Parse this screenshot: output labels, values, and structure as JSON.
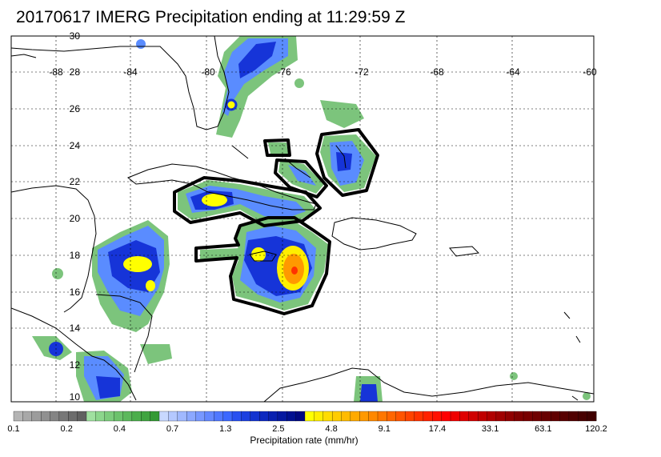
{
  "title": "20170617 IMERG Precipitation ending at 11:29:59 Z",
  "map": {
    "lon_labels": [
      "-88",
      "-84",
      "-80",
      "-76",
      "-72",
      "-68",
      "-64",
      "-60"
    ],
    "lat_labels": [
      "30",
      "28",
      "26",
      "24",
      "22",
      "20",
      "18",
      "16",
      "14",
      "12",
      "10"
    ]
  },
  "colorbar": {
    "title": "Precipitation rate (mm/hr)",
    "labels": [
      "0.1",
      "0.2",
      "0.4",
      "0.7",
      "1.3",
      "2.5",
      "4.8",
      "9.1",
      "17.4",
      "33.1",
      "63.1",
      "120.2"
    ],
    "colors": [
      "#b4b4b4",
      "#a8a8a8",
      "#9c9c9c",
      "#909090",
      "#848484",
      "#787878",
      "#6c6c6c",
      "#606060",
      "#a0e0a0",
      "#8cd68c",
      "#7ccc7c",
      "#6cc26c",
      "#5cb85c",
      "#4cae4c",
      "#40a440",
      "#349a34",
      "#c8d8ff",
      "#b4c8ff",
      "#a0b8ff",
      "#8ca8ff",
      "#7898ff",
      "#6488ff",
      "#5078ff",
      "#3c68ff",
      "#2850f0",
      "#1c40e0",
      "#1434d0",
      "#0c28c0",
      "#0820b0",
      "#0418a0",
      "#001090",
      "#000880",
      "#ffff00",
      "#ffee00",
      "#ffdc00",
      "#ffcc00",
      "#ffbb00",
      "#ffaa00",
      "#ff9900",
      "#ff8800",
      "#ff7700",
      "#ff6600",
      "#ff5500",
      "#ff4400",
      "#ff3300",
      "#ff2200",
      "#ff1100",
      "#ff0000",
      "#f00000",
      "#e00000",
      "#d00000",
      "#c00000",
      "#b00000",
      "#a00000",
      "#900000",
      "#800000",
      "#780000",
      "#700000",
      "#680000",
      "#600000",
      "#580000",
      "#500000",
      "#480000",
      "#400000"
    ]
  }
}
